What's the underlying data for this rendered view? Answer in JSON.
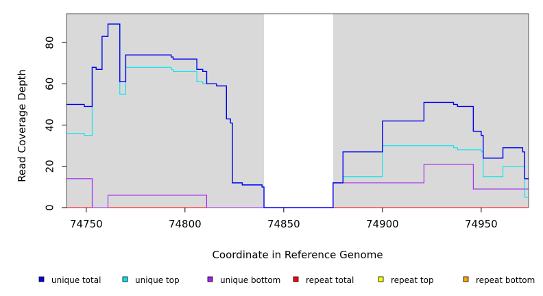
{
  "chart_data": {
    "type": "line",
    "step": true,
    "xlabel": "Coordinate in Reference Genome",
    "ylabel": "Read Coverage Depth",
    "xlim": [
      74740,
      74974
    ],
    "ylim": [
      0,
      94
    ],
    "xticks": [
      74750,
      74800,
      74850,
      74900,
      74950
    ],
    "yticks": [
      0,
      20,
      40,
      60,
      80
    ],
    "shaded_regions": [
      [
        74740,
        74840
      ],
      [
        74875,
        74974
      ]
    ],
    "grid": false,
    "legend_position": "bottom",
    "series": [
      {
        "name": "unique total",
        "color": "#0000ee",
        "x": [
          74740,
          74749,
          74753,
          74755,
          74758,
          74761,
          74763,
          74767,
          74770,
          74793,
          74794,
          74797,
          74806,
          74809,
          74811,
          74816,
          74821,
          74823,
          74824,
          74829,
          74839,
          74840,
          74875,
          74880,
          74900,
          74921,
          74936,
          74938,
          74946,
          74950,
          74951,
          74961,
          74971,
          74972
        ],
        "values": [
          50,
          49,
          68,
          67,
          83,
          89,
          89,
          61,
          74,
          73,
          72,
          72,
          67,
          66,
          60,
          59,
          43,
          41,
          12,
          11,
          10,
          0,
          12,
          27,
          42,
          51,
          50,
          49,
          37,
          35,
          24,
          29,
          27,
          14
        ]
      },
      {
        "name": "unique top",
        "color": "#00e5ee",
        "x": [
          74740,
          74749,
          74753,
          74755,
          74758,
          74761,
          74763,
          74767,
          74770,
          74793,
          74794,
          74797,
          74806,
          74809,
          74811,
          74816,
          74821,
          74823,
          74824,
          74829,
          74839,
          74840,
          74875,
          74880,
          74900,
          74936,
          74938,
          74950,
          74951,
          74961,
          74972
        ],
        "values": [
          36,
          35,
          68,
          67,
          83,
          89,
          89,
          55,
          68,
          67,
          66,
          66,
          61,
          60,
          60,
          59,
          43,
          41,
          12,
          11,
          10,
          0,
          12,
          15,
          30,
          29,
          28,
          27,
          15,
          20,
          5
        ]
      },
      {
        "name": "unique bottom",
        "color": "#a020f0",
        "x": [
          74740,
          74753,
          74761,
          74811,
          74875,
          74921,
          74946
        ],
        "values": [
          14,
          0,
          6,
          0,
          12,
          21,
          9
        ]
      },
      {
        "name": "repeat total",
        "color": "#ff0000",
        "x": [
          74740
        ],
        "values": [
          0
        ]
      },
      {
        "name": "repeat top",
        "color": "#ffff00",
        "x": [
          74740
        ],
        "values": [
          0
        ]
      },
      {
        "name": "repeat bottom",
        "color": "#ffa500",
        "x": [
          74740
        ],
        "values": [
          0
        ]
      }
    ]
  }
}
